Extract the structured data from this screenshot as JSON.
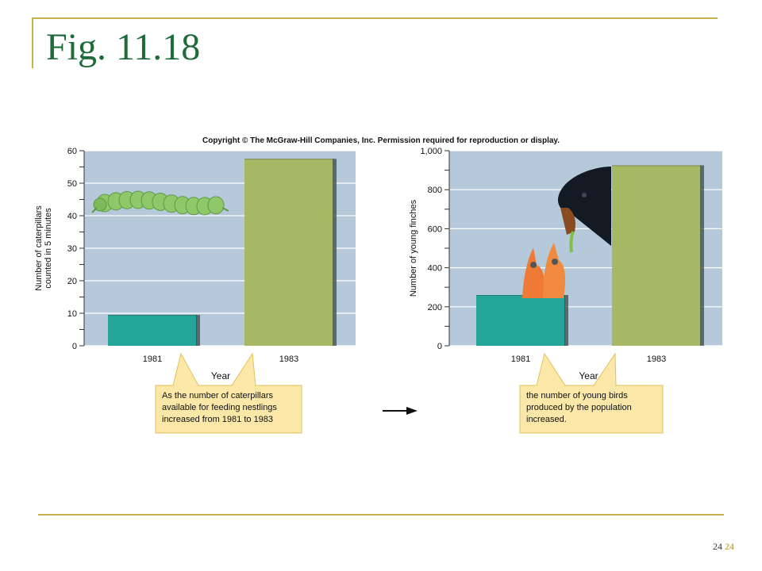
{
  "slide": {
    "title": "Fig. 11.18",
    "copyright": "Copyright © The McGraw-Hill Companies, Inc. Permission required for reproduction or display.",
    "page_number": "24",
    "page_number_accent": "24"
  },
  "colors": {
    "frame": "#c9b24a",
    "title": "#1f6b3a",
    "plot_bg": "#b5c9db",
    "bar_1981": "#24a79a",
    "bar_1983": "#a7b865",
    "callout_bg": "#fbe8a8",
    "callout_border": "#e2c25a"
  },
  "chart_data": [
    {
      "type": "bar",
      "categories": [
        "1981",
        "1983"
      ],
      "values": [
        9.5,
        57.5
      ],
      "ylabel": "Number of caterpillars counted in 5 minutes",
      "ylabel_lines": [
        "Number of caterpillars",
        "counted in 5 minutes"
      ],
      "xlabel": "Year",
      "ylim": [
        0,
        60
      ],
      "yticks": [
        "0",
        "10",
        "20",
        "30",
        "40",
        "50",
        "60"
      ],
      "grid": true,
      "callout": [
        "As the number of caterpillars",
        "available for feeding nestlings",
        "increased from 1981 to 1983"
      ],
      "illustration": "caterpillar"
    },
    {
      "type": "bar",
      "categories": [
        "1981",
        "1983"
      ],
      "values": [
        260,
        925
      ],
      "ylabel": "Number of young finches",
      "xlabel": "Year",
      "ylim": [
        0,
        1000
      ],
      "yticks": [
        "0",
        "200",
        "400",
        "600",
        "800",
        "1,000"
      ],
      "grid": true,
      "callout": [
        "the number of young birds",
        "produced by the population",
        "increased."
      ],
      "illustration": "finches"
    }
  ]
}
